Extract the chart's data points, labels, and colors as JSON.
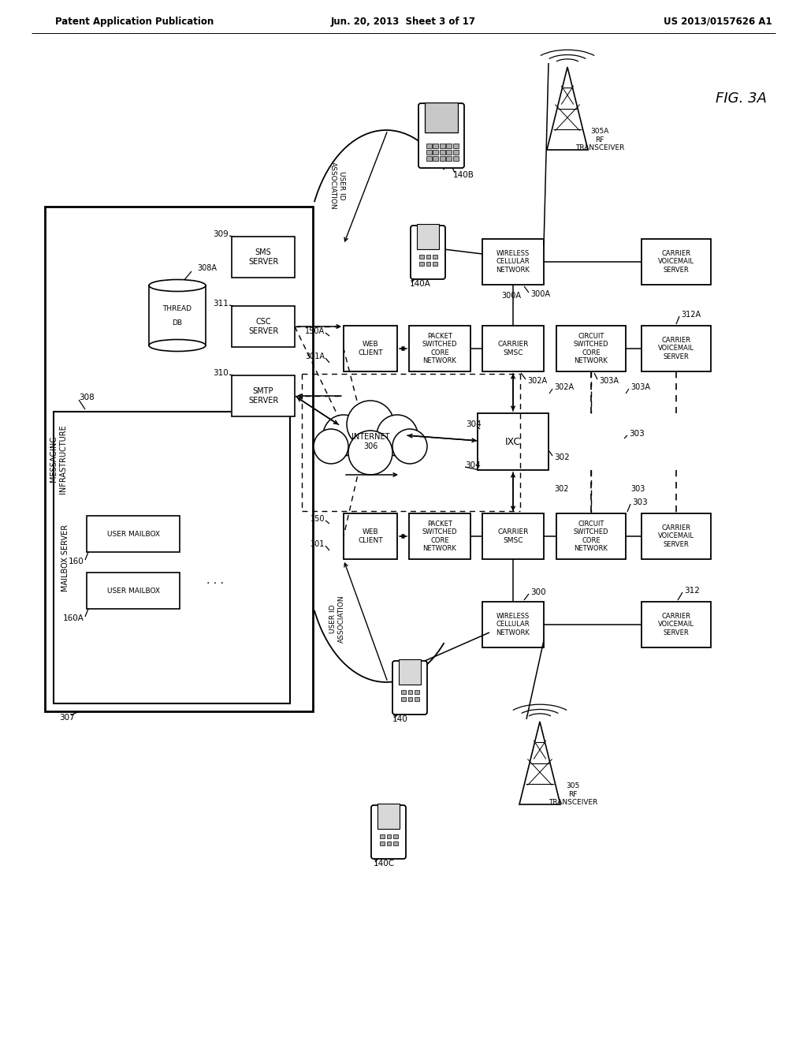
{
  "header_left": "Patent Application Publication",
  "header_center": "Jun. 20, 2013  Sheet 3 of 17",
  "header_right": "US 2013/0157626 A1",
  "fig_label": "FIG. 3A",
  "bg": "#ffffff"
}
